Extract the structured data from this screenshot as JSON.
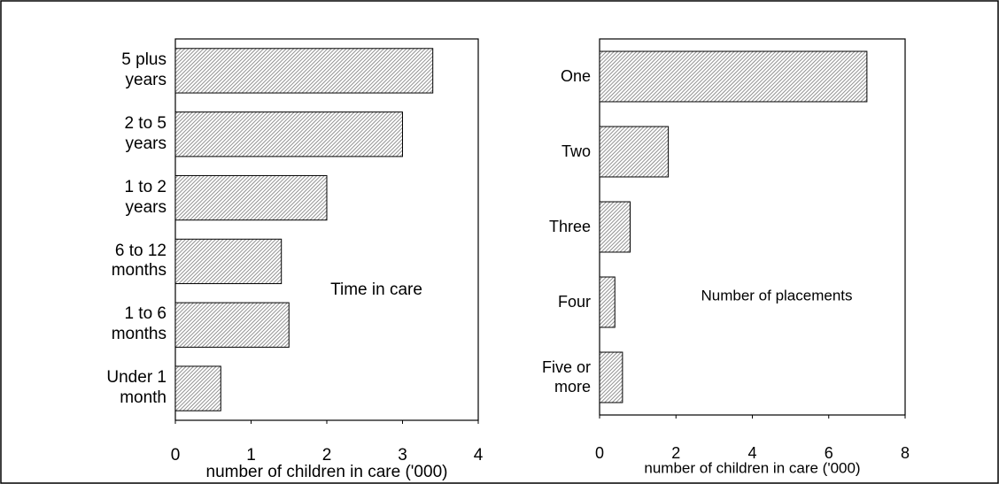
{
  "chart_data": [
    {
      "type": "bar",
      "orientation": "horizontal",
      "categories": [
        "5 plus years",
        "2 to 5 years",
        "1 to 2 years",
        "6 to 12 months",
        "1 to 6 months",
        "Under 1 month"
      ],
      "values": [
        3.4,
        3.0,
        2.0,
        1.4,
        1.5,
        0.6
      ],
      "xlim": [
        0,
        4
      ],
      "xticks": [
        0,
        1,
        2,
        3,
        4
      ],
      "xlabel": "number of children in care ('000)",
      "annotation": "Time in care",
      "color": "#777777"
    },
    {
      "type": "bar",
      "orientation": "horizontal",
      "categories": [
        "One",
        "Two",
        "Three",
        "Four",
        "Five or more"
      ],
      "values": [
        7.0,
        1.8,
        0.8,
        0.4,
        0.6
      ],
      "xlim": [
        0,
        8
      ],
      "xticks": [
        0,
        2,
        4,
        6,
        8
      ],
      "xlabel": "number of children in care ('000)",
      "annotation": "Number of placements",
      "color": "#777777"
    }
  ]
}
